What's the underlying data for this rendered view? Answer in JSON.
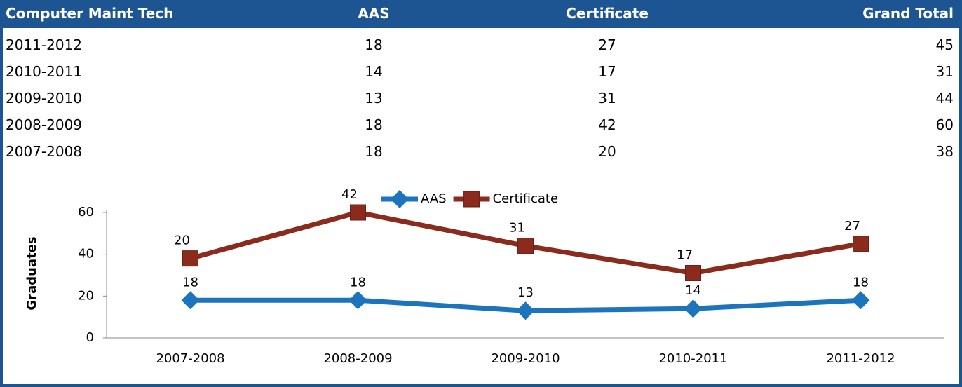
{
  "table": {
    "header": [
      "Computer Maint Tech",
      "AAS",
      "Certificate",
      "Grand Total"
    ],
    "rows": [
      [
        "2011-2012",
        18,
        27,
        45
      ],
      [
        "2010-2011",
        14,
        17,
        31
      ],
      [
        "2009-2010",
        13,
        31,
        44
      ],
      [
        "2008-2009",
        18,
        42,
        60
      ],
      [
        "2007-2008",
        18,
        20,
        38
      ]
    ]
  },
  "chart_data": {
    "type": "line",
    "stacked": true,
    "categories": [
      "2007-2008",
      "2008-2009",
      "2009-2010",
      "2010-2011",
      "2011-2012"
    ],
    "series": [
      {
        "name": "AAS",
        "color": "#1c75bc",
        "marker": "diamond",
        "values": [
          18,
          18,
          13,
          14,
          18
        ]
      },
      {
        "name": "Certificate",
        "color": "#8b2b1e",
        "marker": "square",
        "values": [
          20,
          42,
          31,
          17,
          27
        ]
      }
    ],
    "ylabel": "Graduates",
    "ylim": [
      0,
      60
    ],
    "yticks": [
      0,
      20,
      40,
      60
    ],
    "legend": "top"
  }
}
